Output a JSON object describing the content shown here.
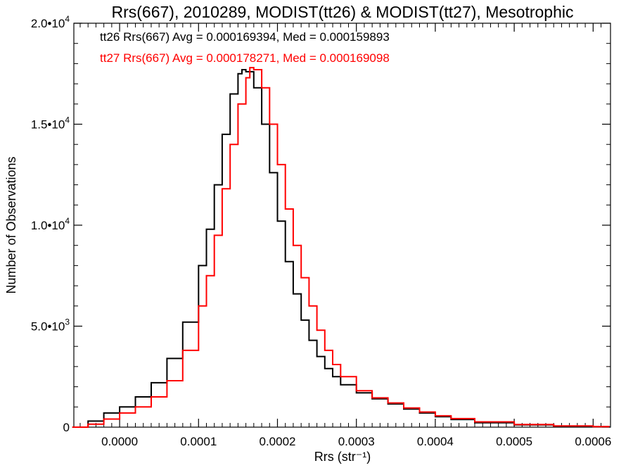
{
  "chart_data": {
    "type": "line",
    "title": "Rrs(667), 2010289, MODIST(tt26) & MODIST(tt27), Mesotrophic",
    "xlabel": "Rrs (str⁻¹)",
    "ylabel": "Number of Observations",
    "xlim": [
      -5.8e-05,
      0.000622
    ],
    "ylim": [
      0,
      20000
    ],
    "x_ticks": [
      {
        "value": 0.0,
        "label": "0.0000"
      },
      {
        "value": 0.0001,
        "label": "0.0001"
      },
      {
        "value": 0.0002,
        "label": "0.0002"
      },
      {
        "value": 0.0003,
        "label": "0.0003"
      },
      {
        "value": 0.0004,
        "label": "0.0004"
      },
      {
        "value": 0.0005,
        "label": "0.0005"
      },
      {
        "value": 0.0006,
        "label": "0.0006"
      }
    ],
    "y_ticks": [
      {
        "value": 0,
        "mant": "0",
        "exp": ""
      },
      {
        "value": 5000,
        "mant": "5.0•10",
        "exp": "3"
      },
      {
        "value": 10000,
        "mant": "1.0•10",
        "exp": "4"
      },
      {
        "value": 15000,
        "mant": "1.5•10",
        "exp": "4"
      },
      {
        "value": 20000,
        "mant": "2.0•10",
        "exp": "4"
      }
    ],
    "annotations": [
      {
        "text": "tt26 Rrs(667) Avg = 0.000169394, Med = 0.000159893",
        "color": "#000000"
      },
      {
        "text": "tt27 Rrs(667) Avg = 0.000178271, Med = 0.000169098",
        "color": "#ff0000"
      }
    ],
    "series": [
      {
        "color": "#000000",
        "x": [
          -6e-05,
          -4e-05,
          -2e-05,
          0.0,
          2e-05,
          4e-05,
          6e-05,
          8e-05,
          0.0001,
          0.00011,
          0.00012,
          0.00013,
          0.00014,
          0.00015,
          0.000155,
          0.00016,
          0.00017,
          0.00018,
          0.00019,
          0.0002,
          0.00021,
          0.00022,
          0.00023,
          0.00024,
          0.00025,
          0.00026,
          0.00027,
          0.00028,
          0.0003,
          0.00032,
          0.00034,
          0.00036,
          0.00038,
          0.0004,
          0.00042,
          0.00045,
          0.0005,
          0.00055,
          0.0006,
          0.00062
        ],
        "values": [
          0,
          300,
          700,
          1000,
          1500,
          2200,
          3400,
          5200,
          8000,
          9800,
          12000,
          14500,
          16500,
          17500,
          17700,
          17600,
          16800,
          15000,
          12600,
          10200,
          8200,
          6600,
          5300,
          4300,
          3500,
          2900,
          2500,
          2100,
          1700,
          1400,
          1150,
          900,
          700,
          520,
          380,
          220,
          110,
          50,
          20,
          10
        ]
      },
      {
        "color": "#ff0000",
        "x": [
          -6e-05,
          -4e-05,
          -2e-05,
          0.0,
          2e-05,
          4e-05,
          6e-05,
          8e-05,
          0.0001,
          0.00011,
          0.00012,
          0.00013,
          0.00014,
          0.00015,
          0.00016,
          0.000165,
          0.00017,
          0.00018,
          0.00019,
          0.0002,
          0.00021,
          0.00022,
          0.00023,
          0.00024,
          0.00025,
          0.00026,
          0.00027,
          0.00028,
          0.0003,
          0.00032,
          0.00034,
          0.00036,
          0.00038,
          0.0004,
          0.00042,
          0.00045,
          0.0005,
          0.00055,
          0.0006,
          0.00062
        ],
        "values": [
          0,
          150,
          400,
          700,
          1000,
          1500,
          2300,
          3800,
          6000,
          7500,
          9500,
          11800,
          14000,
          16000,
          17300,
          17800,
          17700,
          16800,
          15000,
          13000,
          10800,
          9000,
          7400,
          6000,
          4800,
          3800,
          3100,
          2500,
          1800,
          1450,
          1200,
          950,
          750,
          560,
          420,
          260,
          130,
          60,
          25,
          10
        ]
      }
    ],
    "grid": false
  }
}
